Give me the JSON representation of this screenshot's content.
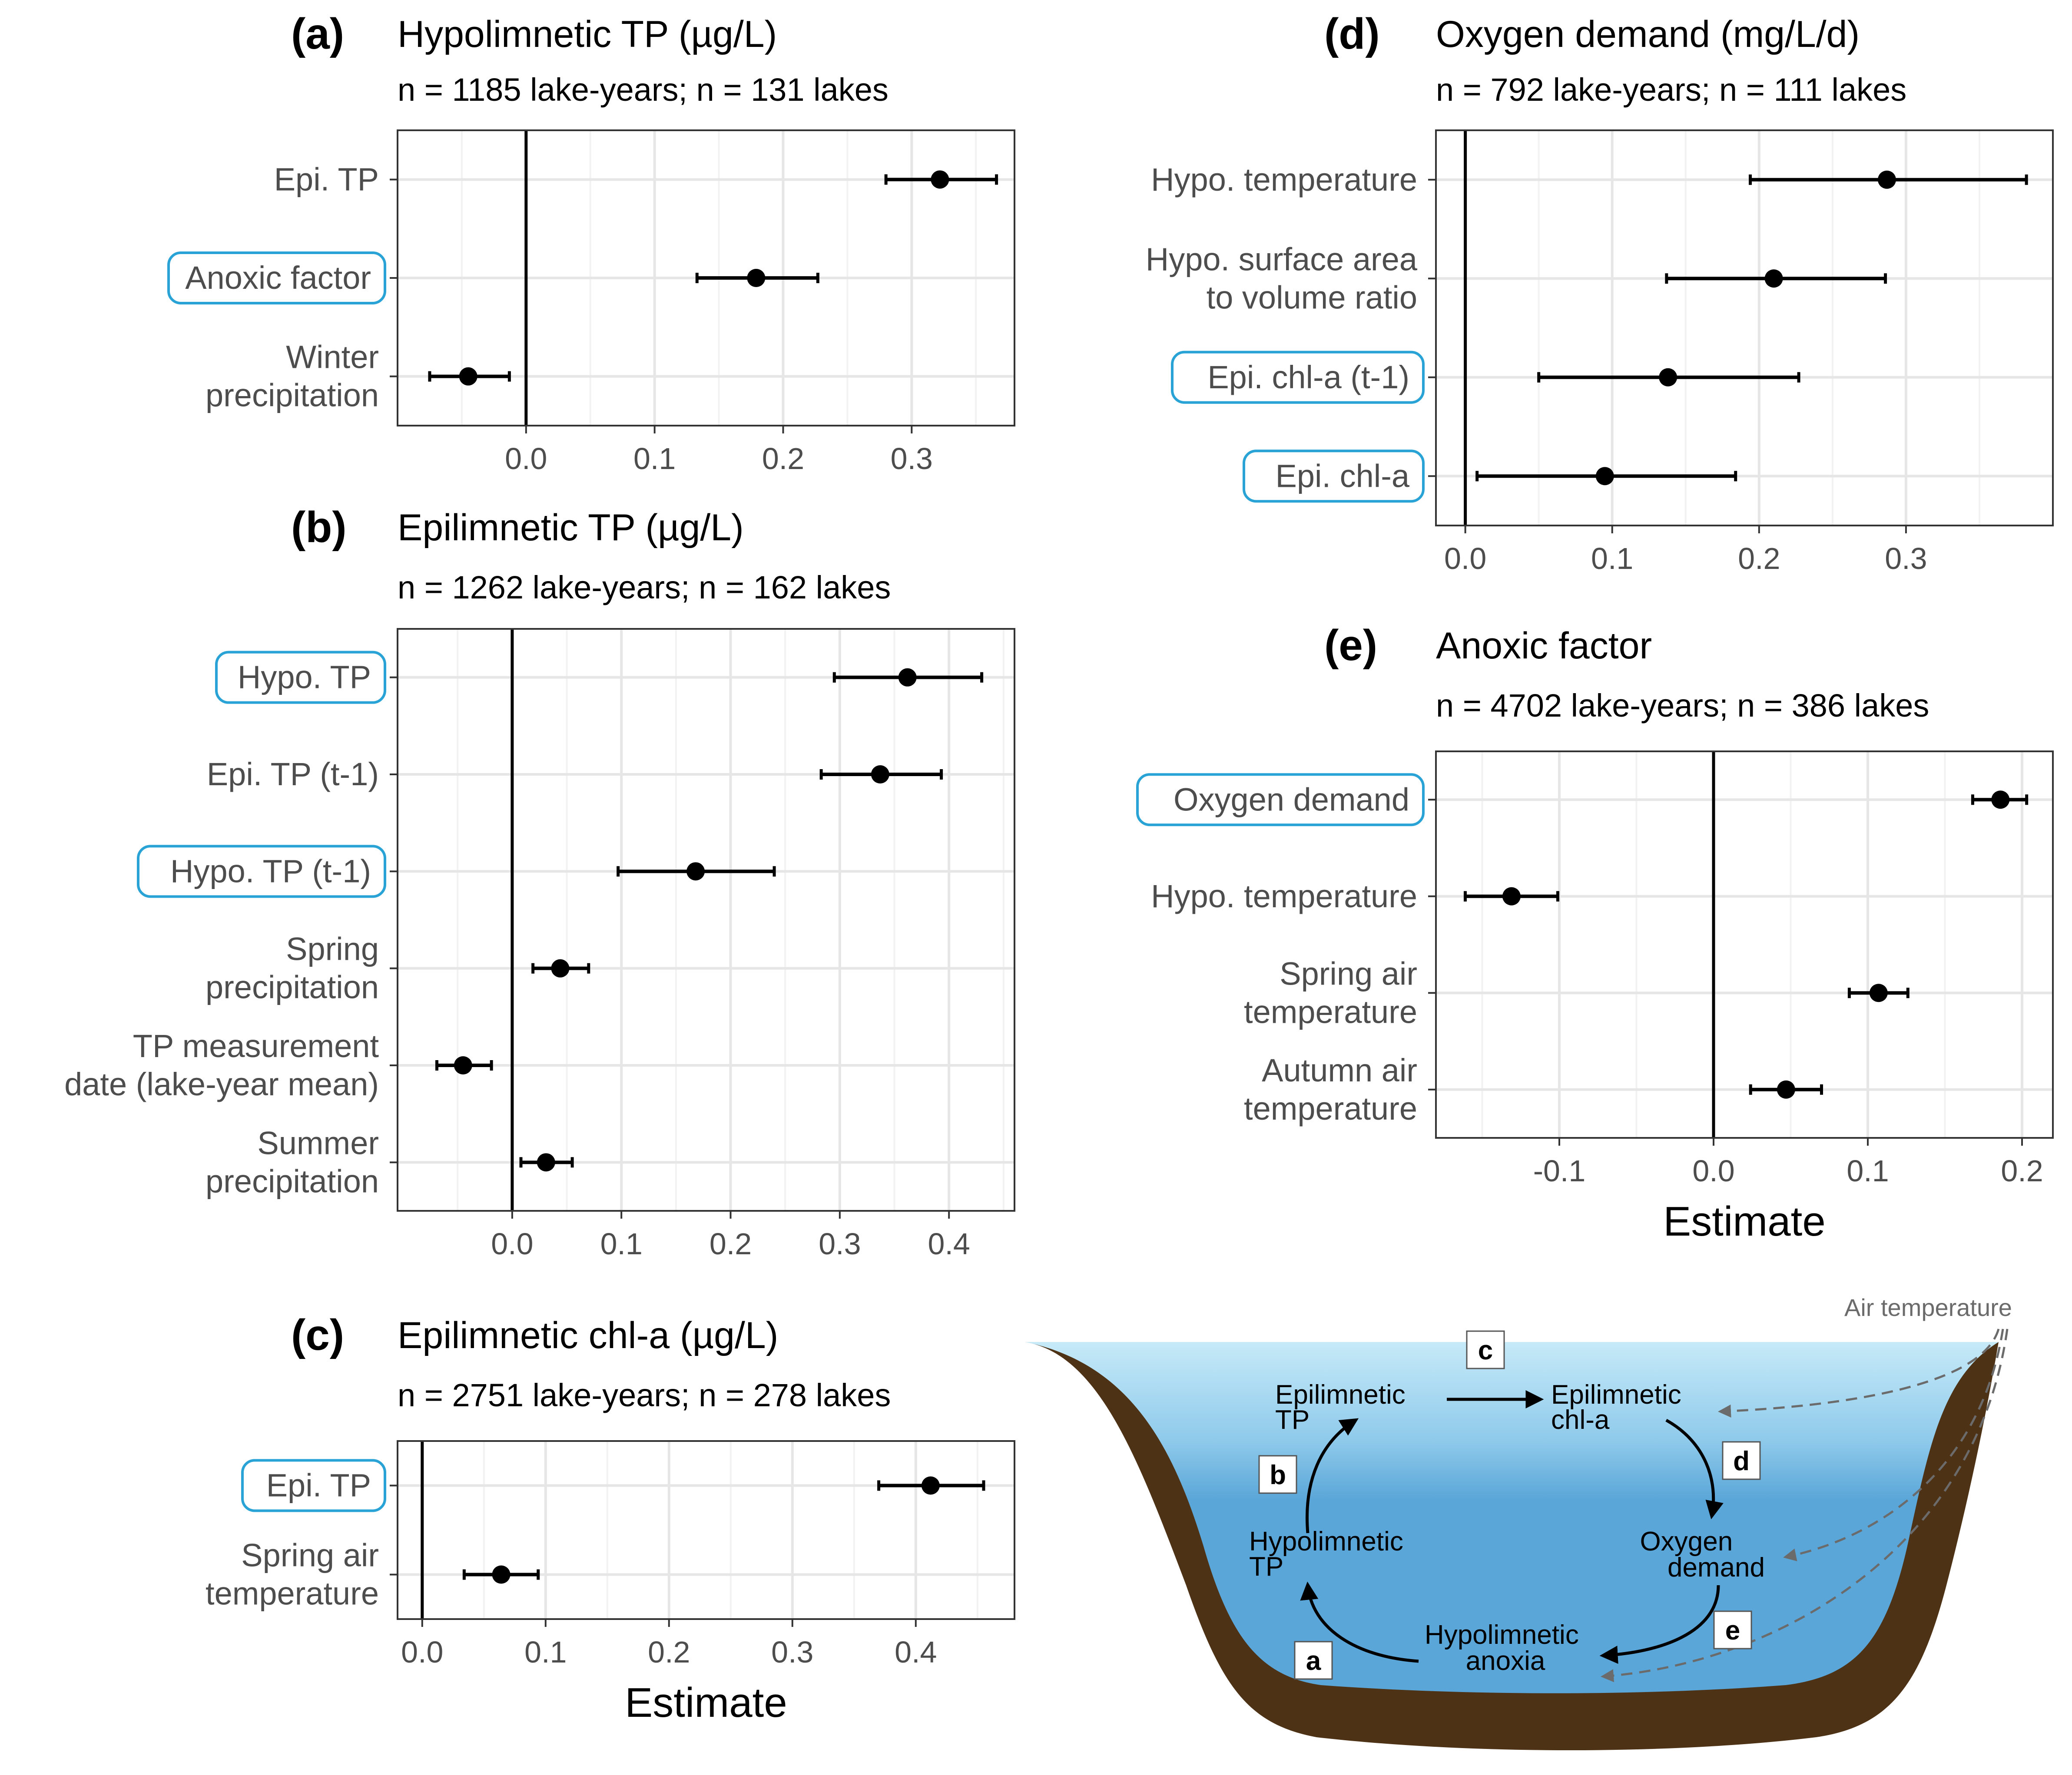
{
  "panels": [
    {
      "tag": "(a)",
      "title": "Hypolimnetic TP (µg/L)",
      "subtitle": "n = 1185 lake-years; n = 131 lakes",
      "xlabel": "",
      "xticks": [
        "0.0",
        "0.1",
        "0.2",
        "0.3"
      ],
      "rows": [
        {
          "label": [
            "Epi. TP"
          ],
          "highlight": false
        },
        {
          "label": [
            "Anoxic factor"
          ],
          "highlight": true
        },
        {
          "label": [
            "Winter",
            "precipitation"
          ],
          "highlight": false
        }
      ]
    },
    {
      "tag": "(b)",
      "title": "Epilimnetic TP (µg/L)",
      "subtitle": "n = 1262 lake-years; n = 162 lakes",
      "xlabel": "",
      "xticks": [
        "0.0",
        "0.1",
        "0.2",
        "0.3",
        "0.4"
      ],
      "rows": [
        {
          "label": [
            "Hypo. TP"
          ],
          "highlight": true
        },
        {
          "label": [
            "Epi. TP (t-1)"
          ],
          "highlight": false
        },
        {
          "label": [
            "Hypo. TP (t-1)"
          ],
          "highlight": true
        },
        {
          "label": [
            "Spring",
            "precipitation"
          ],
          "highlight": false
        },
        {
          "label": [
            "TP measurement",
            "date (lake-year mean)"
          ],
          "highlight": false
        },
        {
          "label": [
            "Summer",
            "precipitation"
          ],
          "highlight": false
        }
      ]
    },
    {
      "tag": "(c)",
      "title": "Epilimnetic chl-a (µg/L)",
      "subtitle": "n = 2751 lake-years; n = 278 lakes",
      "xlabel": "Estimate",
      "xticks": [
        "0.0",
        "0.1",
        "0.2",
        "0.3",
        "0.4"
      ],
      "rows": [
        {
          "label": [
            "Epi. TP"
          ],
          "highlight": true
        },
        {
          "label": [
            "Spring air",
            "temperature"
          ],
          "highlight": false
        }
      ]
    },
    {
      "tag": "(d)",
      "title": "Oxygen demand (mg/L/d)",
      "subtitle": "n = 792 lake-years; n = 111 lakes",
      "xlabel": "",
      "xticks": [
        "0.0",
        "0.1",
        "0.2",
        "0.3"
      ],
      "rows": [
        {
          "label": [
            "Hypo. temperature"
          ],
          "highlight": false
        },
        {
          "label": [
            "Hypo. surface area",
            "to volume ratio"
          ],
          "highlight": false
        },
        {
          "label": [
            "Epi. chl-a (t-1)"
          ],
          "highlight": true
        },
        {
          "label": [
            "Epi. chl-a"
          ],
          "highlight": true
        }
      ]
    },
    {
      "tag": "(e)",
      "title": "Anoxic factor",
      "subtitle": "n = 4702 lake-years; n = 386 lakes",
      "xlabel": "Estimate",
      "xticks": [
        "-0.1",
        "0.0",
        "0.1",
        "0.2"
      ],
      "rows": [
        {
          "label": [
            "Oxygen demand"
          ],
          "highlight": true
        },
        {
          "label": [
            "Hypo. temperature"
          ],
          "highlight": false
        },
        {
          "label": [
            "Spring air",
            "temperature"
          ],
          "highlight": false
        },
        {
          "label": [
            "Autumn air",
            "temperature"
          ],
          "highlight": false
        }
      ]
    }
  ],
  "chart_data": [
    {
      "type": "forest",
      "title": "Hypolimnetic TP (µg/L)",
      "xlim": [
        -0.1,
        0.38
      ],
      "xtick_values": [
        0,
        0.1,
        0.2,
        0.3
      ],
      "estimates": [
        0.322,
        0.179,
        -0.045
      ],
      "lower": [
        0.28,
        0.133,
        -0.075
      ],
      "upper": [
        0.366,
        0.227,
        -0.013
      ]
    },
    {
      "type": "forest",
      "title": "Epilimnetic TP (µg/L)",
      "xlim": [
        -0.105,
        0.46
      ],
      "xtick_values": [
        0,
        0.1,
        0.2,
        0.3,
        0.4
      ],
      "estimates": [
        0.362,
        0.337,
        0.168,
        0.044,
        -0.045,
        0.031
      ],
      "lower": [
        0.295,
        0.283,
        0.097,
        0.019,
        -0.069,
        0.008
      ],
      "upper": [
        0.43,
        0.393,
        0.24,
        0.07,
        -0.019,
        0.055
      ]
    },
    {
      "type": "forest",
      "title": "Epilimnetic chl-a (µg/L)",
      "xlim": [
        -0.02,
        0.48
      ],
      "xtick_values": [
        0,
        0.1,
        0.2,
        0.3,
        0.4
      ],
      "estimates": [
        0.412,
        0.064
      ],
      "lower": [
        0.37,
        0.034
      ],
      "upper": [
        0.455,
        0.094
      ]
    },
    {
      "type": "forest",
      "title": "Oxygen demand (mg/L/d)",
      "xlim": [
        -0.02,
        0.4
      ],
      "xtick_values": [
        0,
        0.1,
        0.2,
        0.3
      ],
      "estimates": [
        0.287,
        0.21,
        0.138,
        0.095
      ],
      "lower": [
        0.194,
        0.137,
        0.05,
        0.008
      ],
      "upper": [
        0.382,
        0.286,
        0.227,
        0.184
      ]
    },
    {
      "type": "forest",
      "title": "Anoxic factor",
      "xlim": [
        -0.18,
        0.22
      ],
      "xtick_values": [
        -0.1,
        0,
        0.1,
        0.2
      ],
      "estimates": [
        0.186,
        -0.131,
        0.107,
        0.047
      ],
      "lower": [
        0.168,
        -0.161,
        0.088,
        0.024
      ],
      "upper": [
        0.203,
        -0.101,
        0.126,
        0.07
      ]
    }
  ],
  "diagram": {
    "nodes": {
      "epi_tp": [
        "Epilimnetic",
        "TP"
      ],
      "epi_chla": [
        "Epilimnetic",
        "chl-a"
      ],
      "oxygen": [
        "Oxygen",
        "demand"
      ],
      "anoxia": [
        "Hypolimnetic",
        "anoxia"
      ],
      "hypo_tp": [
        "Hypolimnetic",
        "TP"
      ],
      "air": "Air temperature"
    },
    "arrow_labels": {
      "a": "a",
      "b": "b",
      "c": "c",
      "d": "d",
      "e": "e"
    },
    "colors": {
      "water_top": "#bfe6f7",
      "water_bottom": "#5aa6d8",
      "soil": "#4e3215",
      "highlight": "#29a3d6"
    }
  }
}
